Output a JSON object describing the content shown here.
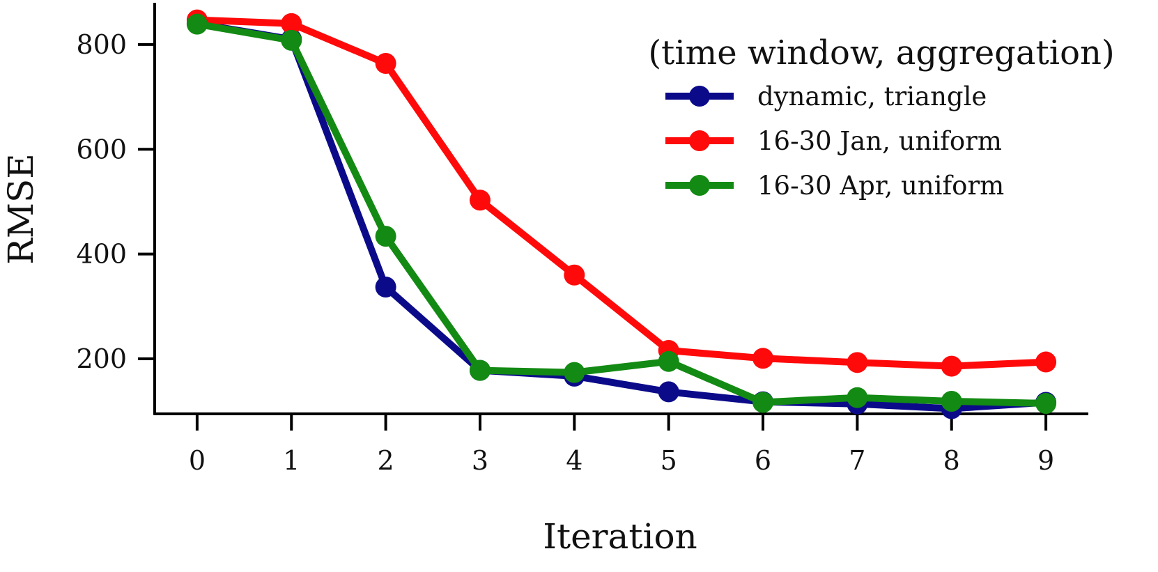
{
  "chart_data": {
    "type": "line",
    "title": "",
    "xlabel": "Iteration",
    "ylabel": "RMSE",
    "x": [
      0,
      1,
      2,
      3,
      4,
      5,
      6,
      7,
      8,
      9
    ],
    "xticks": [
      "0",
      "1",
      "2",
      "3",
      "4",
      "5",
      "6",
      "7",
      "8",
      "9"
    ],
    "yticks": [
      200,
      400,
      600,
      800
    ],
    "ytick_labels": [
      "200",
      "400",
      "600",
      "800"
    ],
    "xlim": [
      -0.45,
      9.45
    ],
    "ylim": [
      95,
      885
    ],
    "grid": false,
    "legend": {
      "title": "(time window, aggregation)",
      "placement": "top-right"
    },
    "series": [
      {
        "name": "dynamic, triangle",
        "color": "#0b0b8a",
        "values": [
          840,
          810,
          337,
          178,
          167,
          137,
          118,
          114,
          105,
          117
        ]
      },
      {
        "name": "16-30 Jan, uniform",
        "color": "#ff0a0a",
        "values": [
          847,
          840,
          764,
          503,
          360,
          216,
          201,
          193,
          186,
          194
        ]
      },
      {
        "name": "16-30 Apr, uniform",
        "color": "#138a13",
        "values": [
          839,
          808,
          434,
          178,
          174,
          195,
          117,
          126,
          119,
          115
        ]
      }
    ]
  }
}
